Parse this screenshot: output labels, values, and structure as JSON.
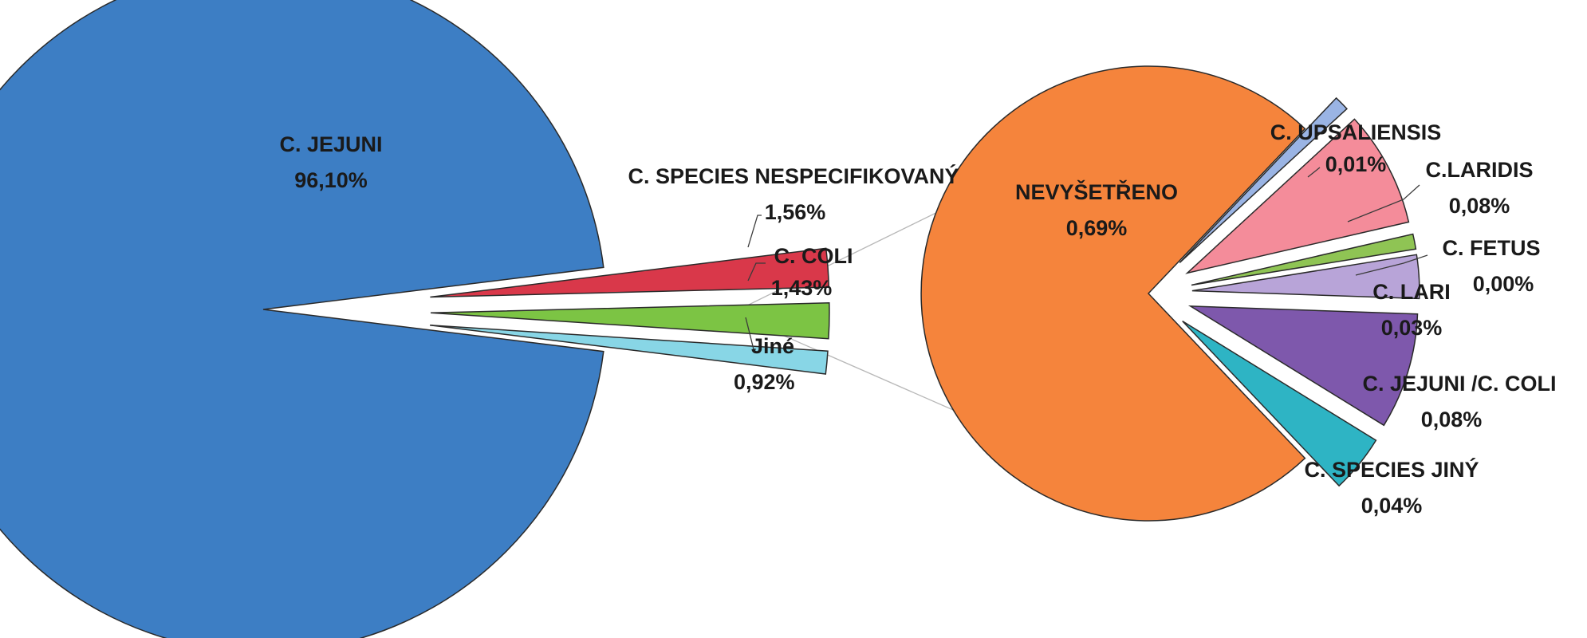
{
  "chart_data": [
    {
      "type": "pie",
      "title": "",
      "slices": [
        {
          "label": "C. JEJUNI",
          "value": 96.1,
          "value_text": "96,10%",
          "color": "#3D7EC4"
        },
        {
          "label": "C. SPECIES NESPECIFIKOVANÝ",
          "value": 1.56,
          "value_text": "1,56%",
          "color": "#D9384A"
        },
        {
          "label": "C. COLI",
          "value": 1.43,
          "value_text": "1,43%",
          "color": "#7CC444"
        },
        {
          "label": "Jiné",
          "value": 0.92,
          "value_text": "0,92%",
          "color": "#88D6E6"
        }
      ]
    },
    {
      "type": "pie",
      "title": "",
      "breakdown_of": "Jiné",
      "slices": [
        {
          "label": "NEVYŠETŘENO",
          "value": 0.69,
          "value_text": "0,69%",
          "color": "#F5843C"
        },
        {
          "label": "C. UPSALIENSIS",
          "value": 0.01,
          "value_text": "0,01%",
          "color": "#9AB4E4"
        },
        {
          "label": "C.LARIDIS",
          "value": 0.08,
          "value_text": "0,08%",
          "color": "#F48C9A"
        },
        {
          "label": "C. FETUS",
          "value": 0.0,
          "value_text": "0,00%",
          "color": "#8FC454"
        },
        {
          "label": "C. LARI",
          "value": 0.03,
          "value_text": "0,03%",
          "color": "#B8A4D8"
        },
        {
          "label": "C. JEJUNI /C. COLI",
          "value": 0.08,
          "value_text": "0,08%",
          "color": "#7E58AC"
        },
        {
          "label": "C. SPECIES JINÝ",
          "value": 0.04,
          "value_text": "0,04%",
          "color": "#2EB4C4"
        }
      ]
    }
  ]
}
